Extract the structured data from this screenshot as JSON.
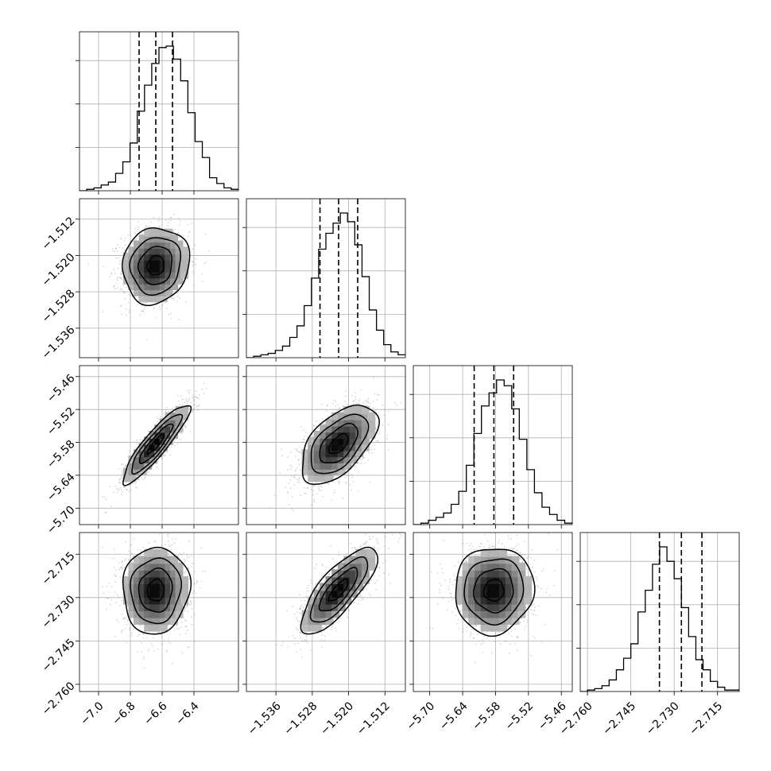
{
  "chart_data": {
    "type": "corner",
    "parameters": [
      {
        "mean": -6.64,
        "sd": 0.105,
        "quantiles": [
          -6.745,
          -6.64,
          -6.535
        ],
        "range": [
          -7.12,
          -6.12
        ],
        "ticks": [
          -7.0,
          -6.8,
          -6.6,
          -6.4
        ],
        "tick_labels": [
          "−7.0",
          "−6.8",
          "−6.6",
          "−6.4"
        ],
        "histogram": [
          0.0,
          0.01,
          0.02,
          0.04,
          0.06,
          0.12,
          0.2,
          0.33,
          0.55,
          0.73,
          0.88,
          0.99,
          1.0,
          0.91,
          0.76,
          0.54,
          0.34,
          0.23,
          0.09,
          0.05,
          0.02,
          0.01
        ]
      },
      {
        "mean": -1.5222,
        "sd": 0.0042,
        "quantiles": [
          -1.5263,
          -1.5222,
          -1.518
        ],
        "range": [
          -1.5425,
          -1.5075
        ],
        "ticks": [
          -1.536,
          -1.528,
          -1.52,
          -1.512
        ],
        "tick_labels": [
          "−1.536",
          "−1.528",
          "−1.520",
          "−1.512"
        ],
        "histogram": [
          0.0,
          0.01,
          0.02,
          0.03,
          0.05,
          0.08,
          0.14,
          0.22,
          0.36,
          0.55,
          0.75,
          0.86,
          0.93,
          1.0,
          0.94,
          0.78,
          0.56,
          0.33,
          0.19,
          0.09,
          0.04,
          0.02
        ]
      },
      {
        "mean": -5.583,
        "sd": 0.036,
        "quantiles": [
          -5.619,
          -5.583,
          -5.547
        ],
        "range": [
          -5.73,
          -5.44
        ],
        "ticks": [
          -5.7,
          -5.64,
          -5.58,
          -5.52,
          -5.46
        ],
        "tick_labels": [
          "−5.70",
          "−5.64",
          "−5.58",
          "−5.52",
          "−5.46"
        ],
        "histogram": [
          0.0,
          0.01,
          0.03,
          0.05,
          0.08,
          0.14,
          0.23,
          0.41,
          0.63,
          0.82,
          0.91,
          1.0,
          0.96,
          0.8,
          0.59,
          0.38,
          0.22,
          0.12,
          0.07,
          0.03,
          0.01
        ]
      },
      {
        "mean": -2.7275,
        "sd": 0.0075,
        "quantiles": [
          -2.7351,
          -2.7275,
          -2.7204
        ],
        "range": [
          -2.7625,
          -2.7075
        ],
        "ticks": [
          -2.76,
          -2.745,
          -2.73,
          -2.715
        ],
        "tick_labels": [
          "−2.760",
          "−2.745",
          "−2.730",
          "−2.715"
        ],
        "histogram": [
          0.0,
          0.01,
          0.02,
          0.04,
          0.08,
          0.15,
          0.23,
          0.33,
          0.55,
          0.7,
          0.88,
          1.0,
          0.9,
          0.78,
          0.58,
          0.38,
          0.22,
          0.15,
          0.07,
          0.03,
          0.01,
          0.01
        ]
      }
    ],
    "correlations": [
      [
        1.0,
        0.1,
        0.9,
        0.05
      ],
      [
        0.1,
        1.0,
        0.55,
        0.78
      ],
      [
        0.9,
        0.55,
        1.0,
        0.05
      ],
      [
        0.05,
        0.78,
        0.05,
        1.0
      ]
    ],
    "contour_levels_sigma": [
      0.5,
      1.0,
      1.5,
      2.0
    ],
    "quantile_style": "dashed",
    "grid": true,
    "colors": {
      "line": "#000000",
      "scatter": "#8a8a8a",
      "grid": "#b0b0b0"
    }
  }
}
